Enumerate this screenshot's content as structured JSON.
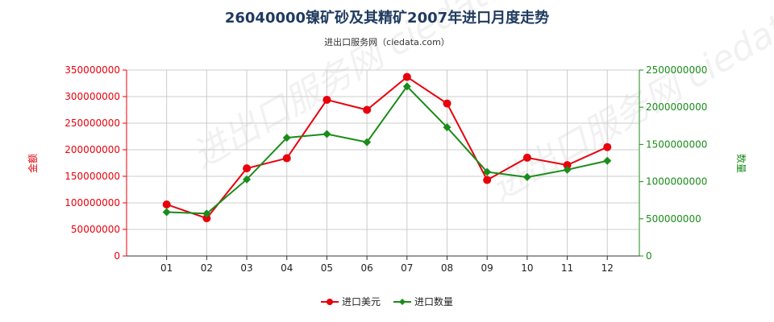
{
  "chart_data": {
    "type": "line",
    "title": "26040000镍矿砂及其精矿2007年进口月度走势",
    "subtitle": "进出口服务网（ciedata.com）",
    "watermark": "进出口服务网 ciedata.com",
    "categories": [
      "01",
      "02",
      "03",
      "04",
      "05",
      "06",
      "07",
      "08",
      "09",
      "10",
      "11",
      "12"
    ],
    "ylabel_left": "金额",
    "ylabel_right": "数量",
    "ylim_left": [
      0,
      350000000
    ],
    "ylim_right": [
      0,
      2500000000
    ],
    "yticks_left": [
      "0",
      "50000000",
      "100000000",
      "150000000",
      "200000000",
      "250000000",
      "300000000",
      "350000000"
    ],
    "yticks_right": [
      "0",
      "500000000",
      "1000000000",
      "1500000000",
      "2000000000",
      "2500000000"
    ],
    "grid": true,
    "legend_position": "bottom",
    "series": [
      {
        "name": "进口美元",
        "axis": "left",
        "color": "#e8000b",
        "marker": "circle",
        "values": [
          97000000,
          71000000,
          165000000,
          184000000,
          294000000,
          275000000,
          337000000,
          287000000,
          143000000,
          185000000,
          171000000,
          205000000
        ]
      },
      {
        "name": "进口数量",
        "axis": "right",
        "color": "#1a8c1a",
        "marker": "diamond",
        "values": [
          590000000,
          570000000,
          1030000000,
          1590000000,
          1640000000,
          1530000000,
          2280000000,
          1730000000,
          1130000000,
          1060000000,
          1160000000,
          1280000000
        ]
      }
    ]
  }
}
